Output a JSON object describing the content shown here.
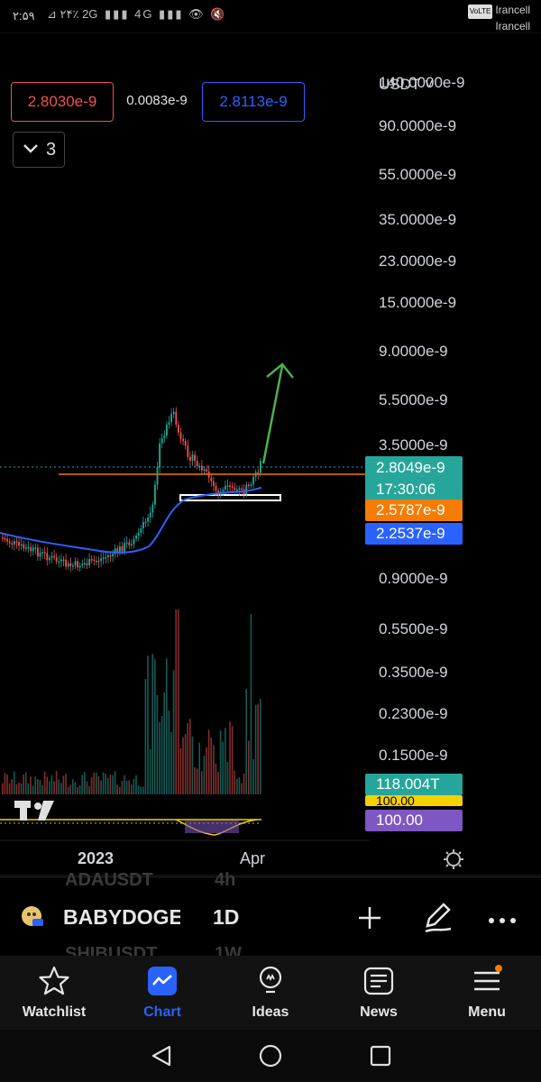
{
  "status_bar": {
    "time": "۲:۵۹",
    "icons_text": "⊿ ۲۴٪ 2G ▮▮▮ 4G ▮▮▮ 👁 🔇",
    "volte": "VoLTE",
    "carrier_1": "Irancell",
    "carrier_2": "Irancell"
  },
  "chart": {
    "currency": "USDT ˅",
    "price_scale_labels": [
      "140.0000e-9",
      "90.0000e-9",
      "55.0000e-9",
      "35.0000e-9",
      "23.0000e-9",
      "15.0000e-9",
      "9.0000e-9",
      "5.5000e-9",
      "3.5000e-9",
      "0.9000e-9",
      "0.5500e-9",
      "0.3500e-9",
      "0.2300e-9",
      "0.1500e-9"
    ],
    "sell_price": "2.8030e-9",
    "spread": "0.0083e-9",
    "buy_price": "2.8113e-9",
    "collapsed_indicators": "3",
    "last_price": "2.8049e-9",
    "countdown": "17:30:06",
    "level_orange": "2.5787e-9",
    "level_blue": "2.2537e-9",
    "volume_label": "118.004T",
    "osc_label_yellow": "100.00",
    "osc_label_purple": "100.00",
    "x_labels": [
      "2023",
      "Apr"
    ],
    "colors": {
      "up": "#26a69a",
      "down": "#ef5350",
      "ma_blue": "#2962ff",
      "orange": "#f57c00",
      "purple": "#7e57c2",
      "accent": "#2962ff"
    }
  },
  "symbol_bar": {
    "symbol": "BABYDOGEU",
    "interval": "1D",
    "ghost_top_symbol": "ADAUSDT",
    "ghost_top_interval": "4h",
    "ghost_bottom_symbol": "SHIBUSDT",
    "ghost_bottom_interval": "1W"
  },
  "nav": {
    "items": [
      {
        "label": "Watchlist",
        "icon": "star-icon"
      },
      {
        "label": "Chart",
        "icon": "chart-icon",
        "active": true
      },
      {
        "label": "Ideas",
        "icon": "lightbulb-icon"
      },
      {
        "label": "News",
        "icon": "news-icon"
      },
      {
        "label": "Menu",
        "icon": "menu-icon",
        "badge": true
      }
    ]
  }
}
